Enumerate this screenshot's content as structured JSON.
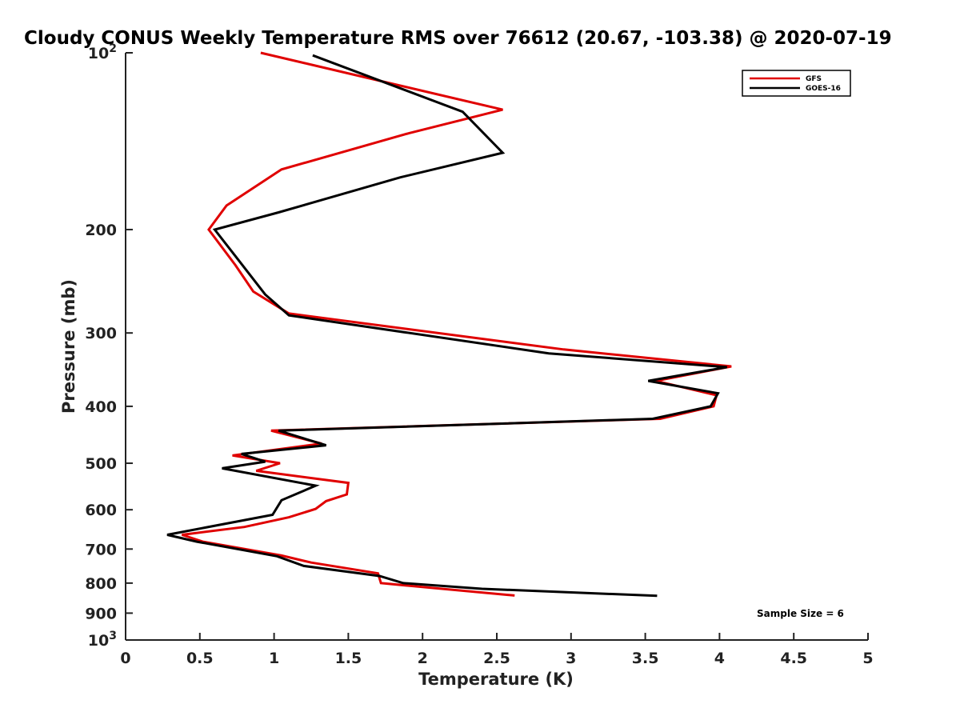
{
  "chart_data": {
    "type": "line",
    "title": "Cloudy CONUS Weekly Temperature RMS over 76612 (20.67, -103.38) @ 2020-07-19",
    "xlabel": "Temperature (K)",
    "ylabel": "Pressure (mb)",
    "xlim": [
      0,
      5
    ],
    "ylim": [
      100,
      1000
    ],
    "yscale": "log",
    "y_reversed": true,
    "x_ticks": [
      0,
      0.5,
      1,
      1.5,
      2,
      2.5,
      3,
      3.5,
      4,
      4.5,
      5
    ],
    "x_tick_labels": [
      "0",
      "0.5",
      "1",
      "1.5",
      "2",
      "2.5",
      "3",
      "3.5",
      "4",
      "4.5",
      "5"
    ],
    "y_ticks": [
      {
        "value": 100,
        "base": "10",
        "exp": "2"
      },
      {
        "value": 200,
        "label": "200"
      },
      {
        "value": 300,
        "label": "300"
      },
      {
        "value": 400,
        "label": "400"
      },
      {
        "value": 500,
        "label": "500"
      },
      {
        "value": 600,
        "label": "600"
      },
      {
        "value": 700,
        "label": "700"
      },
      {
        "value": 800,
        "label": "800"
      },
      {
        "value": 900,
        "label": "900"
      },
      {
        "value": 1000,
        "base": "10",
        "exp": "3"
      }
    ],
    "series": [
      {
        "name": "GFS",
        "color": "#e00000",
        "points": [
          [
            0.91,
            100
          ],
          [
            2.54,
            125
          ],
          [
            1.91,
            137
          ],
          [
            1.05,
            158
          ],
          [
            0.68,
            182
          ],
          [
            0.56,
            200
          ],
          [
            0.74,
            230
          ],
          [
            0.86,
            255
          ],
          [
            1.1,
            278
          ],
          [
            2.95,
            320
          ],
          [
            4.08,
            342
          ],
          [
            3.57,
            362
          ],
          [
            3.98,
            383
          ],
          [
            3.96,
            400
          ],
          [
            3.6,
            420
          ],
          [
            0.98,
            440
          ],
          [
            1.32,
            463
          ],
          [
            0.72,
            485
          ],
          [
            1.04,
            500
          ],
          [
            0.88,
            515
          ],
          [
            1.5,
            540
          ],
          [
            1.49,
            565
          ],
          [
            1.35,
            580
          ],
          [
            1.28,
            598
          ],
          [
            1.1,
            618
          ],
          [
            0.8,
            642
          ],
          [
            0.38,
            662
          ],
          [
            0.52,
            680
          ],
          [
            1.05,
            718
          ],
          [
            1.25,
            738
          ],
          [
            1.7,
            770
          ],
          [
            1.72,
            800
          ],
          [
            2.62,
            840
          ]
        ]
      },
      {
        "name": "GOES-16",
        "color": "#000000",
        "points": [
          [
            1.26,
            101
          ],
          [
            2.27,
            126
          ],
          [
            2.54,
            148
          ],
          [
            1.85,
            163
          ],
          [
            1.03,
            187
          ],
          [
            0.6,
            200
          ],
          [
            0.74,
            222
          ],
          [
            0.94,
            258
          ],
          [
            1.1,
            280
          ],
          [
            2.85,
            325
          ],
          [
            4.05,
            343
          ],
          [
            3.52,
            362
          ],
          [
            3.99,
            380
          ],
          [
            3.94,
            400
          ],
          [
            3.55,
            420
          ],
          [
            1.03,
            440
          ],
          [
            1.35,
            466
          ],
          [
            0.78,
            482
          ],
          [
            0.94,
            497
          ],
          [
            0.65,
            510
          ],
          [
            1.28,
            546
          ],
          [
            1.05,
            578
          ],
          [
            0.99,
            612
          ],
          [
            0.28,
            662
          ],
          [
            0.48,
            680
          ],
          [
            1.02,
            720
          ],
          [
            1.2,
            748
          ],
          [
            1.71,
            778
          ],
          [
            1.87,
            800
          ],
          [
            2.4,
            818
          ],
          [
            3.58,
            841
          ]
        ]
      }
    ],
    "legend": {
      "position": "top-right",
      "entries": [
        "GFS",
        "GOES-16"
      ]
    },
    "annotation": "Sample Size = 6",
    "grid": false
  }
}
